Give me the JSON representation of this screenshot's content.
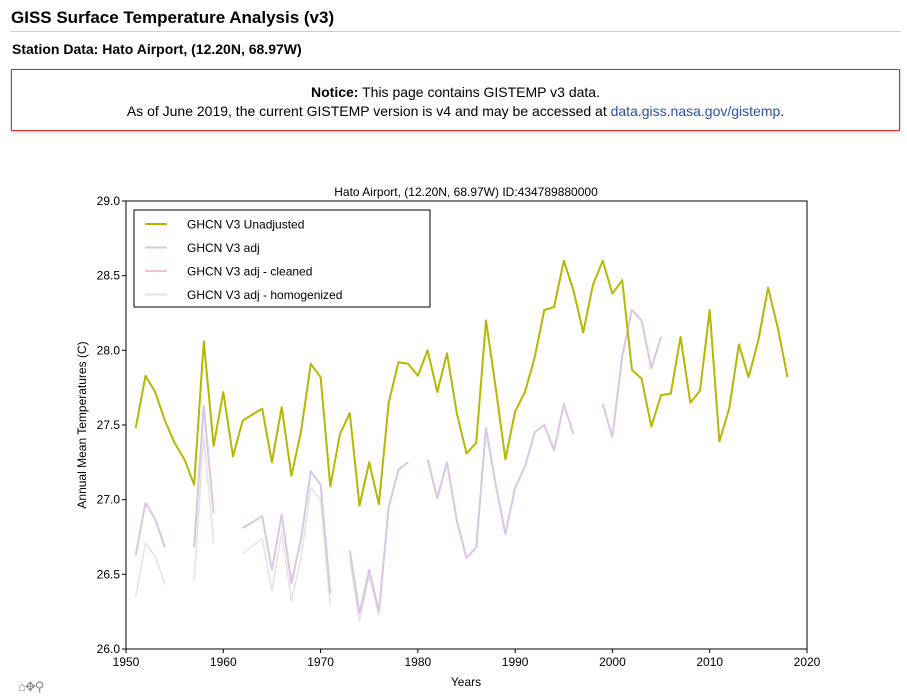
{
  "page": {
    "title": "GISS Surface Temperature Analysis (v3)",
    "station_heading": "Station Data: Hato Airport, (12.20N, 68.97W)"
  },
  "notice": {
    "label": "Notice:",
    "line1_text": " This page contains GISTEMP v3 data.",
    "line2_text": "As of June 2019, the current GISTEMP version is v4 and may be accessed at ",
    "link_text": "data.giss.nasa.gov/gistemp",
    "line2_end": "."
  },
  "toolbar": {
    "home_icon": "home-icon",
    "pan_icon": "pan-icon",
    "zoom_icon": "zoom-icon"
  },
  "chart_data": {
    "type": "line",
    "title": "Hato Airport, (12.20N, 68.97W) ID:434789880000",
    "xlabel": "Years",
    "ylabel": "Annual Mean Temperatures (C)",
    "xlim": [
      1950,
      2020
    ],
    "ylim": [
      26.0,
      29.0
    ],
    "xticks": [
      1950,
      1960,
      1970,
      1980,
      1990,
      2000,
      2010,
      2020
    ],
    "yticks": [
      26.0,
      26.5,
      27.0,
      27.5,
      28.0,
      28.5,
      29.0
    ],
    "xtick_labels": [
      "1950",
      "1960",
      "1970",
      "1980",
      "1990",
      "2000",
      "2010",
      "2020"
    ],
    "ytick_labels": [
      "26.0",
      "26.5",
      "27.0",
      "27.5",
      "28.0",
      "28.5",
      "29.0"
    ],
    "grid": false,
    "legend_position": "top-left",
    "series": [
      {
        "name": "GHCN V3 Unadjusted",
        "color": "#b5b800",
        "width": 2,
        "segments": [
          [
            [
              1951,
              27.48
            ],
            [
              1952,
              27.83
            ],
            [
              1953,
              27.72
            ],
            [
              1954,
              27.53
            ],
            [
              1955,
              27.38
            ],
            [
              1956,
              27.27
            ],
            [
              1957,
              27.1
            ],
            [
              1958,
              28.06
            ],
            [
              1959,
              27.36
            ],
            [
              1960,
              27.72
            ],
            [
              1961,
              27.29
            ],
            [
              1962,
              27.53
            ],
            [
              1963,
              27.57
            ],
            [
              1964,
              27.61
            ],
            [
              1965,
              27.25
            ],
            [
              1966,
              27.62
            ],
            [
              1967,
              27.16
            ],
            [
              1968,
              27.46
            ],
            [
              1969,
              27.91
            ],
            [
              1970,
              27.82
            ],
            [
              1971,
              27.09
            ],
            [
              1972,
              27.44
            ],
            [
              1973,
              27.58
            ],
            [
              1974,
              26.96
            ],
            [
              1975,
              27.25
            ],
            [
              1976,
              26.97
            ],
            [
              1977,
              27.65
            ],
            [
              1978,
              27.92
            ],
            [
              1979,
              27.91
            ],
            [
              1980,
              27.83
            ],
            [
              1981,
              28.0
            ],
            [
              1982,
              27.72
            ],
            [
              1983,
              27.98
            ],
            [
              1984,
              27.58
            ],
            [
              1985,
              27.31
            ],
            [
              1986,
              27.38
            ],
            [
              1987,
              28.2
            ],
            [
              1988,
              27.75
            ],
            [
              1989,
              27.27
            ],
            [
              1990,
              27.59
            ],
            [
              1991,
              27.72
            ],
            [
              1992,
              27.95
            ],
            [
              1993,
              28.27
            ],
            [
              1994,
              28.29
            ],
            [
              1995,
              28.6
            ],
            [
              1996,
              28.4
            ],
            [
              1997,
              28.12
            ],
            [
              1998,
              28.44
            ],
            [
              1999,
              28.6
            ],
            [
              2000,
              28.38
            ],
            [
              2001,
              28.47
            ],
            [
              2002,
              27.87
            ],
            [
              2003,
              27.81
            ],
            [
              2004,
              27.49
            ],
            [
              2005,
              27.7
            ],
            [
              2006,
              27.71
            ],
            [
              2007,
              28.09
            ],
            [
              2008,
              27.65
            ],
            [
              2009,
              27.73
            ],
            [
              2010,
              28.27
            ],
            [
              2011,
              27.39
            ],
            [
              2012,
              27.61
            ],
            [
              2013,
              28.04
            ],
            [
              2014,
              27.82
            ],
            [
              2015,
              28.07
            ],
            [
              2016,
              28.42
            ],
            [
              2017,
              28.15
            ],
            [
              2018,
              27.82
            ]
          ]
        ]
      },
      {
        "name": "GHCN V3 adj",
        "color": "#d8c6e3",
        "width": 2,
        "segments": [
          [
            [
              1951,
              26.63
            ],
            [
              1952,
              26.98
            ],
            [
              1953,
              26.87
            ],
            [
              1954,
              26.68
            ]
          ],
          [
            [
              1957,
              26.68
            ],
            [
              1958,
              27.63
            ],
            [
              1959,
              26.91
            ]
          ],
          [
            [
              1962,
              26.81
            ],
            [
              1963,
              26.85
            ],
            [
              1964,
              26.89
            ],
            [
              1965,
              26.53
            ],
            [
              1966,
              26.9
            ],
            [
              1967,
              26.44
            ],
            [
              1968,
              26.74
            ],
            [
              1969,
              27.19
            ],
            [
              1970,
              27.1
            ],
            [
              1971,
              26.37
            ]
          ],
          [
            [
              1973,
              26.66
            ],
            [
              1974,
              26.24
            ],
            [
              1975,
              26.53
            ],
            [
              1976,
              26.25
            ],
            [
              1977,
              26.95
            ],
            [
              1978,
              27.2
            ],
            [
              1979,
              27.25
            ]
          ],
          [
            [
              1981,
              27.27
            ],
            [
              1982,
              27.01
            ],
            [
              1983,
              27.25
            ],
            [
              1984,
              26.86
            ],
            [
              1985,
              26.61
            ],
            [
              1986,
              26.68
            ],
            [
              1987,
              27.48
            ],
            [
              1988,
              27.1
            ],
            [
              1989,
              26.77
            ],
            [
              1990,
              27.08
            ],
            [
              1991,
              27.22
            ],
            [
              1992,
              27.45
            ],
            [
              1993,
              27.5
            ],
            [
              1994,
              27.33
            ],
            [
              1995,
              27.64
            ],
            [
              1996,
              27.44
            ]
          ],
          [
            [
              1999,
              27.64
            ],
            [
              2000,
              27.42
            ],
            [
              2001,
              27.96
            ],
            [
              2002,
              28.27
            ],
            [
              2003,
              28.2
            ],
            [
              2004,
              27.88
            ],
            [
              2005,
              28.09
            ]
          ]
        ]
      },
      {
        "name": "GHCN V3 adj - cleaned",
        "color": "#f1c4cd",
        "width": 1.6,
        "segments": [
          [
            [
              1951,
              26.63
            ],
            [
              1952,
              26.98
            ],
            [
              1953,
              26.87
            ],
            [
              1954,
              26.68
            ]
          ],
          [
            [
              1957,
              26.68
            ],
            [
              1958,
              27.63
            ],
            [
              1959,
              26.91
            ]
          ],
          [
            [
              1962,
              26.81
            ],
            [
              1963,
              26.85
            ],
            [
              1964,
              26.89
            ],
            [
              1965,
              26.53
            ],
            [
              1966,
              26.9
            ],
            [
              1967,
              26.44
            ],
            [
              1968,
              26.74
            ],
            [
              1969,
              27.19
            ],
            [
              1970,
              27.1
            ],
            [
              1971,
              26.37
            ]
          ],
          [
            [
              1973,
              26.66
            ],
            [
              1974,
              26.24
            ],
            [
              1975,
              26.53
            ],
            [
              1976,
              26.25
            ],
            [
              1977,
              26.95
            ],
            [
              1978,
              27.2
            ],
            [
              1979,
              27.25
            ]
          ],
          [
            [
              1981,
              27.27
            ],
            [
              1982,
              27.01
            ],
            [
              1983,
              27.25
            ],
            [
              1984,
              26.86
            ],
            [
              1985,
              26.61
            ],
            [
              1986,
              26.68
            ],
            [
              1987,
              27.48
            ],
            [
              1988,
              27.1
            ],
            [
              1989,
              26.77
            ],
            [
              1990,
              27.08
            ],
            [
              1991,
              27.22
            ],
            [
              1992,
              27.45
            ],
            [
              1993,
              27.5
            ],
            [
              1994,
              27.33
            ],
            [
              1995,
              27.64
            ],
            [
              1996,
              27.44
            ]
          ],
          [
            [
              1999,
              27.64
            ],
            [
              2000,
              27.42
            ],
            [
              2001,
              27.96
            ],
            [
              2002,
              28.27
            ],
            [
              2003,
              28.2
            ],
            [
              2004,
              27.88
            ],
            [
              2005,
              28.09
            ]
          ]
        ]
      },
      {
        "name": "GHCN V3 adj - homogenized",
        "color": "#e3e3e3",
        "width": 1.6,
        "segments": [
          [
            [
              1951,
              26.35
            ],
            [
              1952,
              26.71
            ],
            [
              1953,
              26.62
            ],
            [
              1954,
              26.43
            ]
          ],
          [
            [
              1957,
              26.46
            ],
            [
              1958,
              27.42
            ],
            [
              1959,
              26.71
            ]
          ],
          [
            [
              1962,
              26.64
            ],
            [
              1963,
              26.69
            ],
            [
              1964,
              26.74
            ],
            [
              1965,
              26.39
            ],
            [
              1966,
              26.78
            ],
            [
              1967,
              26.32
            ],
            [
              1968,
              26.61
            ],
            [
              1969,
              27.08
            ],
            [
              1970,
              27.0
            ],
            [
              1971,
              26.29
            ]
          ],
          [
            [
              1973,
              26.6
            ],
            [
              1974,
              26.19
            ],
            [
              1975,
              26.49
            ],
            [
              1976,
              26.22
            ]
          ]
        ]
      }
    ]
  }
}
